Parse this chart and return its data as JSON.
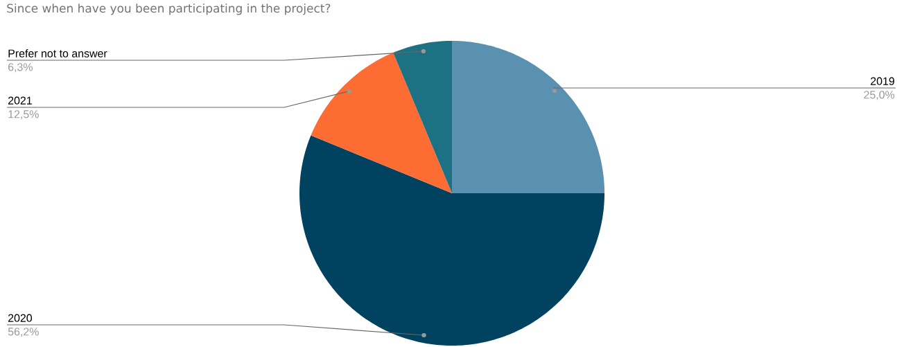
{
  "chart_data": {
    "type": "pie",
    "title": "Since when have you been participating in the project?",
    "categories": [
      "2019",
      "2020",
      "2021",
      "Prefer not to answer"
    ],
    "values": [
      25.0,
      56.2,
      12.5,
      6.3
    ],
    "value_labels": [
      "25,0%",
      "56,2%",
      "12,5%",
      "6,3%"
    ],
    "colors": [
      "#5a91b0",
      "#00425f",
      "#fd6c32",
      "#1c7182"
    ]
  }
}
